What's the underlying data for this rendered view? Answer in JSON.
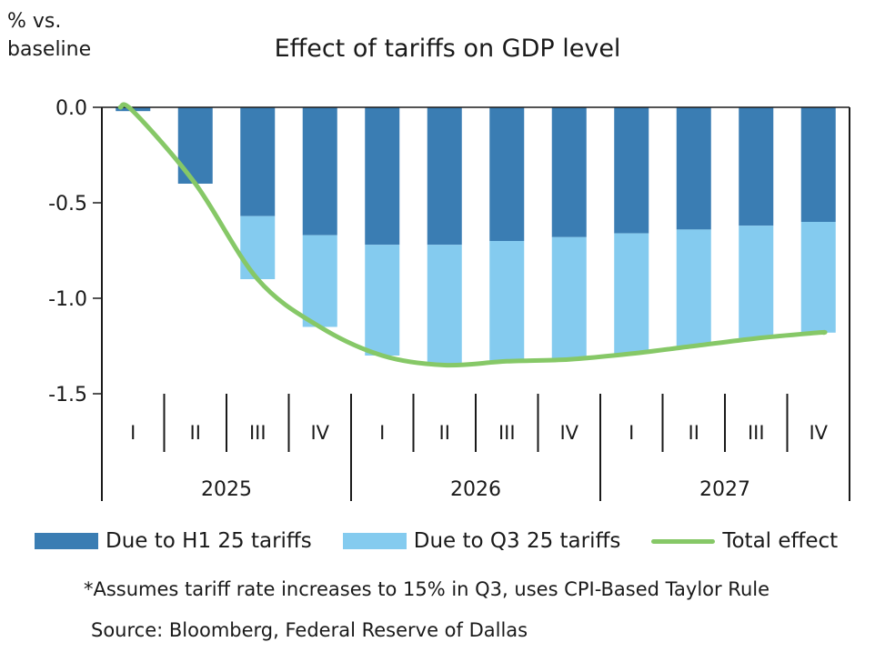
{
  "chart_data": {
    "type": "bar",
    "title": "Effect of tariffs on GDP level",
    "ylabel": "% vs. baseline",
    "ylim": [
      -1.5,
      0.0
    ],
    "yticks": [
      "0.0",
      "-0.5",
      "-1.0",
      "-1.5"
    ],
    "ytick_values": [
      0.0,
      -0.5,
      -1.0,
      -1.5
    ],
    "categories": [
      "I",
      "II",
      "III",
      "IV",
      "I",
      "II",
      "III",
      "IV",
      "I",
      "II",
      "III",
      "IV"
    ],
    "years": [
      "2025",
      "2026",
      "2027"
    ],
    "stacked": true,
    "series": [
      {
        "name": "Due to H1 25 tariffs",
        "kind": "bar",
        "color": "#3a7db3",
        "values": [
          -0.02,
          -0.4,
          -0.57,
          -0.67,
          -0.72,
          -0.72,
          -0.7,
          -0.68,
          -0.66,
          -0.64,
          -0.62,
          -0.6
        ]
      },
      {
        "name": "Due to Q3 25 tariffs",
        "kind": "bar",
        "color": "#84cbef",
        "values": [
          0.0,
          0.0,
          -0.33,
          -0.48,
          -0.58,
          -0.63,
          -0.63,
          -0.64,
          -0.63,
          -0.61,
          -0.59,
          -0.58
        ]
      },
      {
        "name": "Total effect",
        "kind": "line",
        "color": "#86c867",
        "values": [
          -0.02,
          -0.4,
          -0.9,
          -1.15,
          -1.3,
          -1.35,
          -1.33,
          -1.32,
          -1.29,
          -1.25,
          -1.21,
          -1.18
        ]
      }
    ],
    "legend_position": "bottom",
    "grid": false
  },
  "note": "*Assumes tariff rate increases to 15% in Q3, uses CPI-Based Taylor Rule",
  "source": "Source: Bloomberg, Federal Reserve of Dallas"
}
